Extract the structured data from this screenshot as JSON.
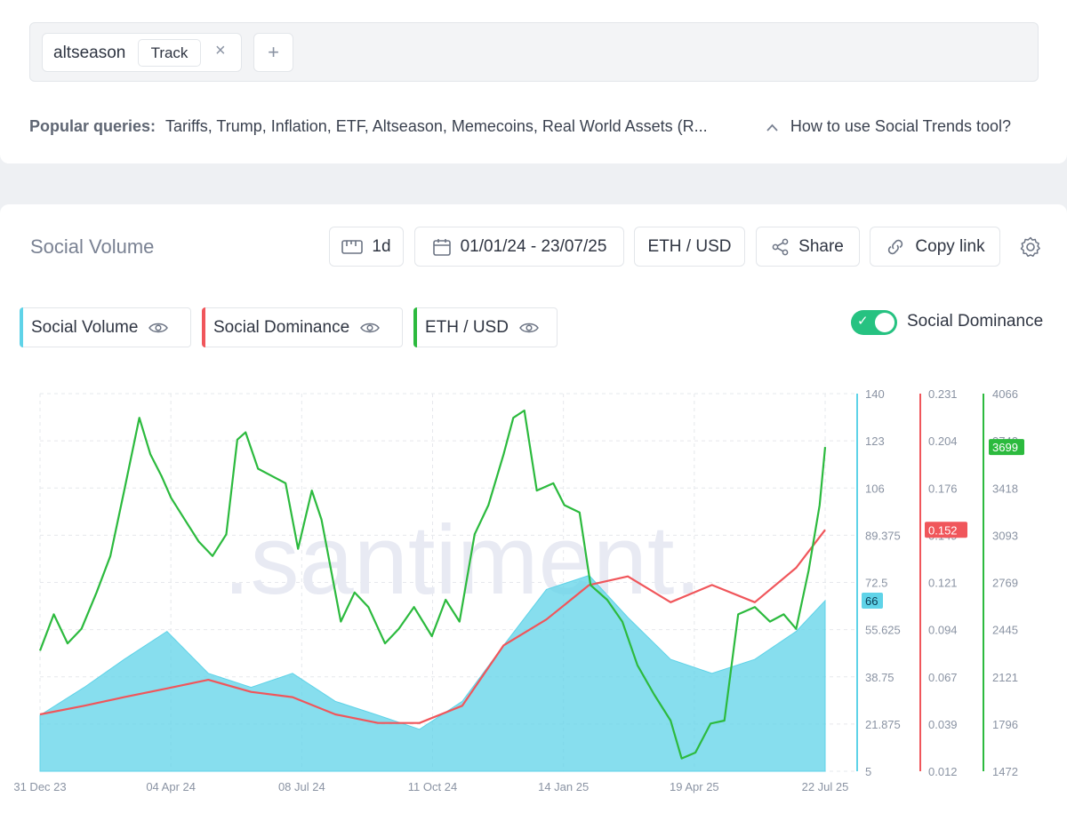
{
  "search": {
    "query": "altseason",
    "track_label": "Track",
    "close_glyph": "×",
    "add_glyph": "+"
  },
  "popular": {
    "label": "Popular queries:",
    "items": "Tariffs, Trump, Inflation, ETF, Altseason, Memecoins, Real World Assets (R...",
    "help_link": "How to use Social Trends tool?"
  },
  "panel": {
    "title": "Social Volume",
    "toolbar": {
      "interval": "1d",
      "date_range": "01/01/24 - 23/07/25",
      "asset": "ETH / USD",
      "share": "Share",
      "copy_link": "Copy link"
    },
    "metrics": [
      {
        "label": "Social Volume",
        "color": "#5fd3e8"
      },
      {
        "label": "Social Dominance",
        "color": "#f0565b"
      },
      {
        "label": "ETH / USD",
        "color": "#2cba3e"
      }
    ],
    "toggle_label": "Social Dominance",
    "toggle_on": true
  },
  "chart_data": {
    "type": "line",
    "watermark": ".santiment.",
    "x_ticks": [
      "31 Dec 23",
      "04 Apr 24",
      "08 Jul 24",
      "11 Oct 24",
      "14 Jan 25",
      "19 Apr 25",
      "22 Jul 25"
    ],
    "x_start": "2023-12-31",
    "x_end": "2025-07-22",
    "axes": {
      "social_volume": {
        "ticks": [
          "140",
          "123",
          "106",
          "89.375",
          "72.5",
          "55.625",
          "38.75",
          "21.875",
          "5"
        ],
        "range": [
          5,
          140
        ],
        "current": "66",
        "color": "#5fd3e8"
      },
      "social_dominance": {
        "ticks": [
          "0.231",
          "0.204",
          "0.176",
          "0.149",
          "0.121",
          "0.094",
          "0.067",
          "0.039",
          "0.012"
        ],
        "range": [
          0.012,
          0.231
        ],
        "current": "0.152",
        "color": "#f0565b"
      },
      "eth_usd": {
        "ticks": [
          "4066",
          "3742",
          "3418",
          "3093",
          "2769",
          "2445",
          "2121",
          "1796",
          "1472"
        ],
        "range": [
          1472,
          4066
        ],
        "current": "3699",
        "color": "#2cba3e"
      }
    },
    "series": [
      {
        "name": "ETH / USD",
        "color": "#2cba3e",
        "dates": [
          "2023-12-31",
          "2024-01-10",
          "2024-01-20",
          "2024-01-30",
          "2024-02-10",
          "2024-02-20",
          "2024-03-01",
          "2024-03-12",
          "2024-03-20",
          "2024-03-28",
          "2024-04-04",
          "2024-04-14",
          "2024-04-24",
          "2024-05-04",
          "2024-05-14",
          "2024-05-22",
          "2024-05-28",
          "2024-06-06",
          "2024-06-16",
          "2024-06-26",
          "2024-07-05",
          "2024-07-15",
          "2024-07-22",
          "2024-08-05",
          "2024-08-15",
          "2024-08-25",
          "2024-09-06",
          "2024-09-16",
          "2024-09-27",
          "2024-10-10",
          "2024-10-20",
          "2024-10-30",
          "2024-11-10",
          "2024-11-20",
          "2024-12-01",
          "2024-12-08",
          "2024-12-16",
          "2024-12-25",
          "2025-01-06",
          "2025-01-14",
          "2025-01-25",
          "2025-02-02",
          "2025-02-14",
          "2025-02-25",
          "2025-03-08",
          "2025-03-20",
          "2025-04-01",
          "2025-04-09",
          "2025-04-19",
          "2025-04-30",
          "2025-05-10",
          "2025-05-20",
          "2025-06-01",
          "2025-06-12",
          "2025-06-22",
          "2025-07-01",
          "2025-07-10",
          "2025-07-18",
          "2025-07-22"
        ],
        "values": [
          2300,
          2550,
          2350,
          2450,
          2700,
          2950,
          3400,
          3900,
          3650,
          3500,
          3350,
          3200,
          3050,
          2950,
          3100,
          3750,
          3800,
          3550,
          3500,
          3450,
          3000,
          3400,
          3200,
          2500,
          2700,
          2600,
          2350,
          2450,
          2600,
          2400,
          2650,
          2500,
          3100,
          3300,
          3650,
          3900,
          3950,
          3400,
          3450,
          3300,
          3250,
          2750,
          2650,
          2500,
          2200,
          2000,
          1820,
          1560,
          1600,
          1800,
          1820,
          2550,
          2600,
          2500,
          2550,
          2450,
          2850,
          3300,
          3699
        ]
      },
      {
        "name": "Social Dominance",
        "color": "#f0565b",
        "dates": [
          "2023-12-31",
          "2024-02-01",
          "2024-03-01",
          "2024-04-01",
          "2024-05-01",
          "2024-06-01",
          "2024-07-01",
          "2024-08-01",
          "2024-09-01",
          "2024-10-01",
          "2024-11-01",
          "2024-12-01",
          "2025-01-01",
          "2025-02-01",
          "2025-03-01",
          "2025-04-01",
          "2025-05-01",
          "2025-06-01",
          "2025-07-01",
          "2025-07-22"
        ],
        "values": [
          0.045,
          0.05,
          0.055,
          0.06,
          0.065,
          0.058,
          0.055,
          0.045,
          0.04,
          0.04,
          0.05,
          0.085,
          0.1,
          0.12,
          0.125,
          0.11,
          0.12,
          0.11,
          0.13,
          0.152
        ]
      },
      {
        "name": "Social Volume",
        "color": "#5fd3e8",
        "dates": [
          "2023-12-31",
          "2024-02-01",
          "2024-03-01",
          "2024-04-01",
          "2024-05-01",
          "2024-06-01",
          "2024-07-01",
          "2024-08-01",
          "2024-09-01",
          "2024-10-01",
          "2024-11-01",
          "2024-12-01",
          "2025-01-01",
          "2025-02-01",
          "2025-03-01",
          "2025-04-01",
          "2025-05-01",
          "2025-06-01",
          "2025-07-01",
          "2025-07-22"
        ],
        "values": [
          25,
          35,
          45,
          55,
          40,
          35,
          40,
          30,
          25,
          20,
          30,
          50,
          70,
          75,
          60,
          45,
          40,
          45,
          55,
          66
        ]
      }
    ]
  }
}
